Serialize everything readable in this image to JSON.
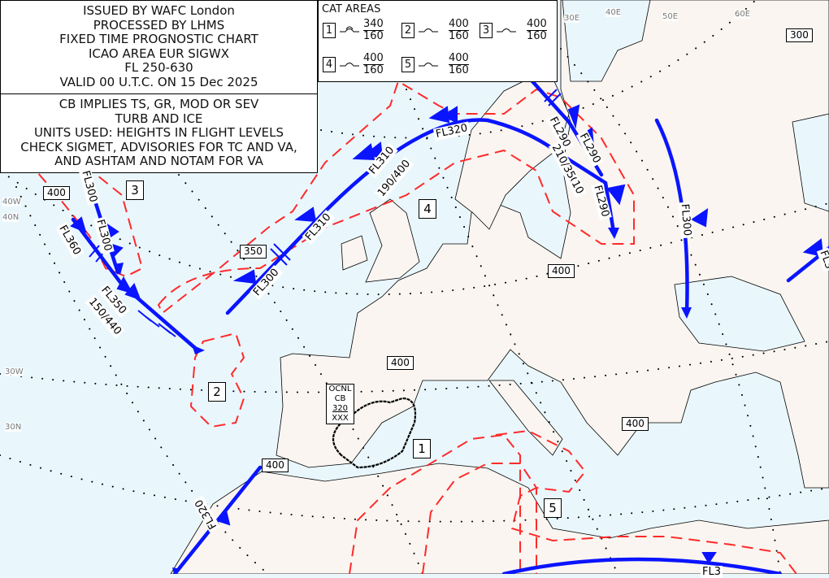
{
  "header": {
    "lines": [
      "ISSUED BY WAFC London",
      "PROCESSED BY  LHMS",
      "FIXED TIME PROGNOSTIC CHART",
      "ICAO AREA EUR SIGWX",
      "FL 250-630",
      "VALID  00 U.T.C.  ON  15 Dec 2025"
    ]
  },
  "notes": {
    "lines": [
      "CB IMPLIES TS, GR, MOD OR SEV",
      "TURB AND ICE",
      "UNITS USED: HEIGHTS IN FLIGHT LEVELS",
      "CHECK SIGMET, ADVISORIES FOR TC AND VA,",
      "AND ASHTAM AND NOTAM FOR VA"
    ]
  },
  "cat_areas": {
    "title": "CAT AREAS",
    "items": [
      {
        "id": "1",
        "top": "340",
        "base": "160",
        "intensity": "moderate-severe"
      },
      {
        "id": "2",
        "top": "400",
        "base": "160",
        "intensity": "moderate"
      },
      {
        "id": "3",
        "top": "400",
        "base": "160",
        "intensity": "moderate"
      },
      {
        "id": "4",
        "top": "400",
        "base": "160",
        "intensity": "moderate"
      },
      {
        "id": "5",
        "top": "400",
        "base": "160",
        "intensity": "moderate"
      }
    ]
  },
  "grid_labels": [
    "40W",
    "40N",
    "30W",
    "30N",
    "30E",
    "40E",
    "50E",
    "60E"
  ],
  "tropopause_heights": [
    "400",
    "350",
    "400",
    "400",
    "400",
    "400",
    "300"
  ],
  "area_labels": [
    "1",
    "2",
    "3",
    "4",
    "5"
  ],
  "cb": {
    "coverage": "OCNL",
    "type": "CB",
    "top": "320",
    "base": "XXX"
  },
  "jet_labels": [
    "FL300",
    "FL300",
    "FL360",
    "FL350",
    "150/440",
    "FL300",
    "FL310",
    "FL310",
    "190/400",
    "FL320",
    "FL290",
    "FL290",
    "210/350",
    "10",
    "FL290",
    "FL300",
    "FL320",
    "FL3",
    "FL3"
  ],
  "colors": {
    "sea": "#e9f7fd",
    "land": "#faf5f0",
    "jet": "#0a14ff",
    "cat": "#ff2a2a",
    "cb": "#000000"
  }
}
